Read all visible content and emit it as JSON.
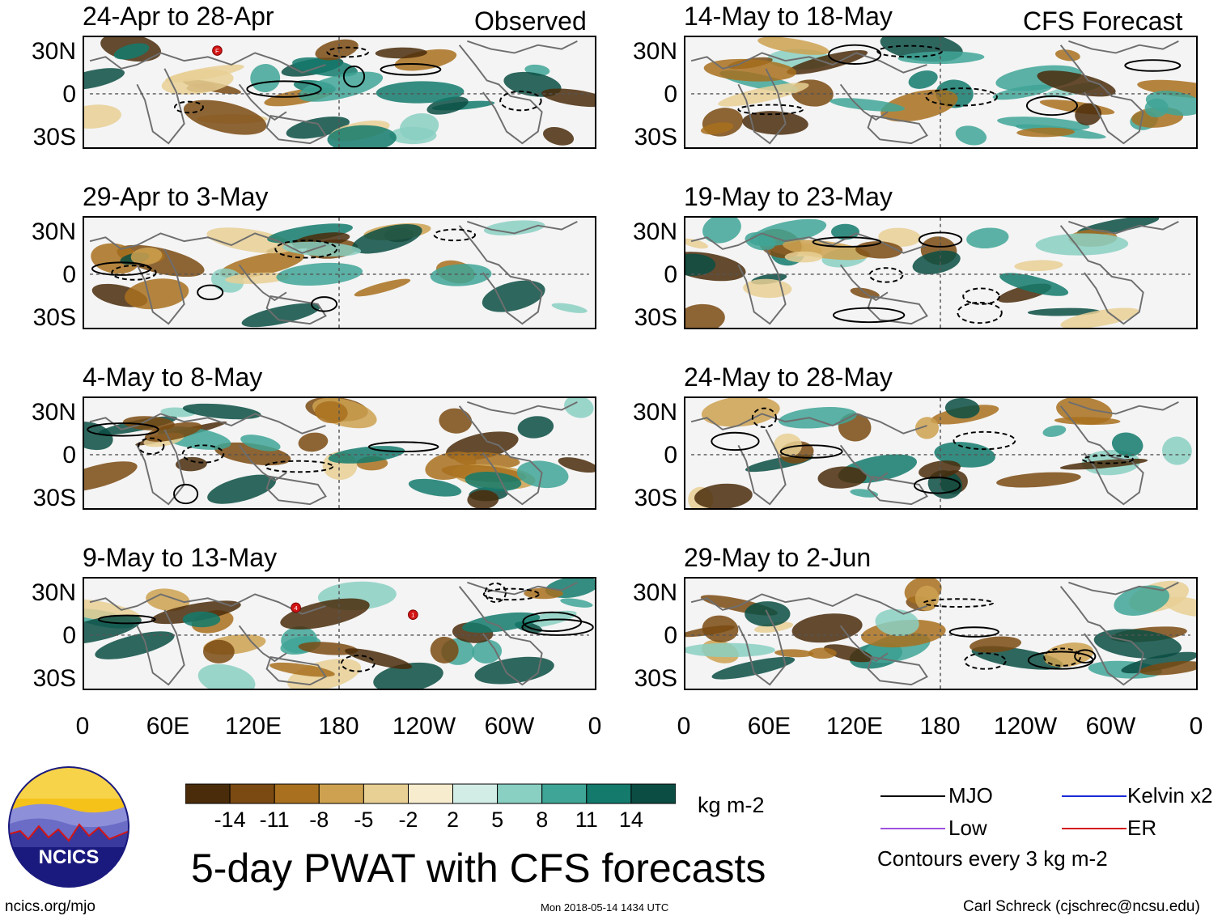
{
  "column_titles": {
    "observed": "Observed",
    "forecast": "CFS Forecast"
  },
  "panels": [
    {
      "date": "24-Apr to 28-Apr",
      "column": "observed",
      "storms": [
        "F"
      ]
    },
    {
      "date": "29-Apr to 3-May",
      "column": "observed",
      "storms": []
    },
    {
      "date": "4-May to 8-May",
      "column": "observed",
      "storms": []
    },
    {
      "date": "9-May to 13-May",
      "column": "observed",
      "storms": [
        "4",
        "1"
      ]
    },
    {
      "date": "14-May to 18-May",
      "column": "forecast",
      "storms": []
    },
    {
      "date": "19-May to 23-May",
      "column": "forecast",
      "storms": []
    },
    {
      "date": "24-May to 28-May",
      "column": "forecast",
      "storms": []
    },
    {
      "date": "29-May to 2-Jun",
      "column": "forecast",
      "storms": []
    }
  ],
  "y_axis_labels": [
    "30N",
    "0",
    "30S"
  ],
  "x_axis_labels": [
    "0",
    "60E",
    "120E",
    "180",
    "120W",
    "60W",
    "0"
  ],
  "colorbar": {
    "ticks": [
      "-14",
      "-11",
      "-8",
      "-5",
      "-2",
      "2",
      "5",
      "8",
      "11",
      "14"
    ],
    "colors": [
      "#4a2c0a",
      "#7a4a12",
      "#a8701f",
      "#cda150",
      "#e8cf94",
      "#f8ecce",
      "#ffffff",
      "#d2ece6",
      "#89cfc2",
      "#3fa596",
      "#137a6c",
      "#0b4d43"
    ],
    "units": "kg m-2"
  },
  "legend": {
    "items": [
      {
        "label": "MJO",
        "color": "#000000"
      },
      {
        "label": "Kelvin x2",
        "color": "#1a2ad6"
      },
      {
        "label": "Low",
        "color": "#a050e0"
      },
      {
        "label": "ER",
        "color": "#d41414"
      }
    ],
    "note": "Contours every 3 kg m-2"
  },
  "title": "5-day PWAT with CFS forecasts",
  "logo_text": "NCICS",
  "footer": {
    "url": "ncics.org/mjo",
    "timestamp": "Mon 2018-05-14 1434 UTC",
    "credit": "Carl Schreck (cjschrec@ncsu.edu)"
  }
}
